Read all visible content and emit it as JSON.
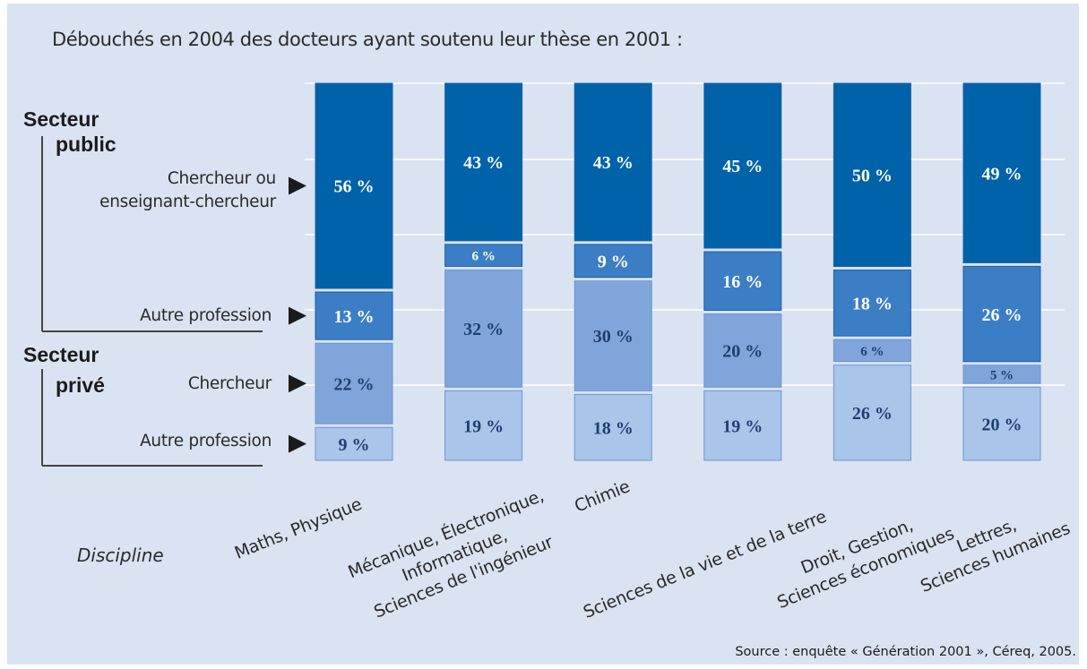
{
  "title": "Débouchés en 2004 des docteurs ayant soutenu leur thèse en 2001 :",
  "source": "Source : enquête « Génération 2001 », Céreq, 2005.",
  "axis": {
    "discipline_label": "Discipline"
  },
  "sectors": {
    "public": [
      "Secteur",
      "public"
    ],
    "prive": [
      "Secteur",
      "privé"
    ]
  },
  "row_labels": {
    "public_research": [
      "Chercheur ou",
      "enseignant-chercheur"
    ],
    "public_other": "Autre profession",
    "private_research": "Chercheur",
    "private_other": "Autre profession"
  },
  "colors": {
    "public_research": "#0062a8",
    "public_other": "#3c7ec6",
    "private_research": "#7fa5db",
    "private_other": "#a9c5ea",
    "background": "#d9e3f2"
  },
  "chart_data": {
    "type": "bar",
    "stacked": true,
    "title": "Débouchés en 2004 des docteurs ayant soutenu leur thèse en 2001 :",
    "xlabel": "Discipline",
    "ylim": [
      0,
      100
    ],
    "grid": true,
    "categories": [
      [
        "Maths, Physique"
      ],
      [
        "Mécanique, Électronique,",
        "Informatique,",
        "Sciences de l'ingénieur"
      ],
      [
        "Chimie"
      ],
      [
        "Sciences de la vie et de la terre"
      ],
      [
        "Droit, Gestion,",
        "Sciences économiques"
      ],
      [
        "Lettres,",
        "Sciences humaines"
      ]
    ],
    "series": [
      {
        "name": "Autre profession",
        "values": [
          9,
          19,
          18,
          19,
          26,
          20
        ]
      },
      {
        "name": "Chercheur",
        "values": [
          22,
          32,
          30,
          20,
          6,
          5
        ]
      },
      {
        "name": "Autre profession",
        "values": [
          13,
          6,
          9,
          16,
          18,
          26
        ]
      },
      {
        "name": "Chercheur ou enseignant-chercheur",
        "values": [
          56,
          43,
          43,
          45,
          50,
          49
        ]
      }
    ],
    "value_labels": [
      [
        "9 %",
        "19 %",
        "18 %",
        "19 %",
        "26 %",
        "20 %"
      ],
      [
        "22 %",
        "32 %",
        "30 %",
        "20 %",
        "6 %",
        "5 %"
      ],
      [
        "13 %",
        "6 %",
        "9 %",
        "16 %",
        "18 %",
        "26 %"
      ],
      [
        "56 %",
        "43 %",
        "43 %",
        "45 %",
        "50 %",
        "49 %"
      ]
    ]
  }
}
